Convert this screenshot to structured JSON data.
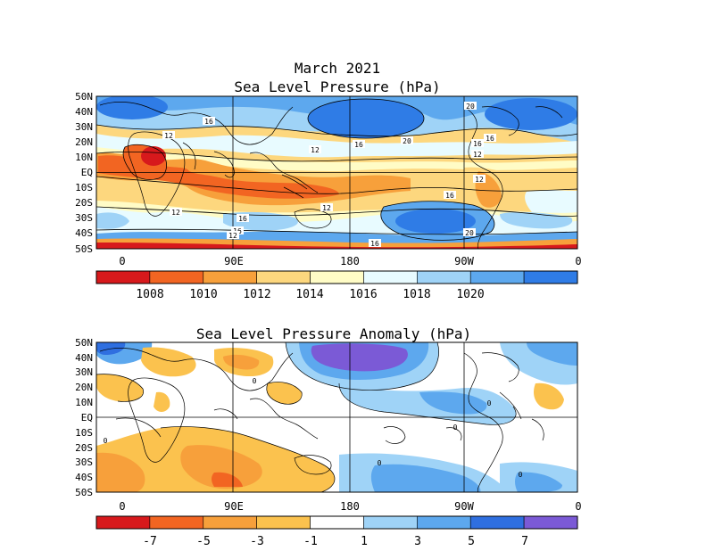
{
  "title_line1": "March 2021",
  "title_line2": "Sea Level Pressure (hPa)",
  "title_anomaly": "Sea Level Pressure Anomaly (hPa)",
  "lat_labels": [
    "50N",
    "40N",
    "30N",
    "20N",
    "10N",
    "EQ",
    "10S",
    "20S",
    "30S",
    "40S",
    "50S"
  ],
  "lon_labels": [
    "0",
    "90E",
    "180",
    "90W",
    "0"
  ],
  "contour_labels_top": [
    "16",
    "12",
    "16",
    "20",
    "12",
    "16",
    "20",
    "16",
    "12",
    "12",
    "16",
    "12",
    "12",
    "16",
    "16",
    "12",
    "20",
    "16"
  ],
  "contour_labels_bottom": [
    "0",
    "0",
    "0",
    "0",
    "0",
    "0"
  ],
  "colorbar_top": {
    "labels": [
      "1008",
      "1010",
      "1012",
      "1014",
      "1016",
      "1018",
      "1020"
    ],
    "colors": [
      "#d7191c",
      "#f26522",
      "#f7a03b",
      "#fdd77e",
      "#fffcc6",
      "#e8fbff",
      "#9fd3f7",
      "#5da8ee",
      "#2f7ce6"
    ]
  },
  "colorbar_bottom": {
    "labels": [
      "-7",
      "-5",
      "-3",
      "-1",
      "1",
      "3",
      "5",
      "7"
    ],
    "colors": [
      "#d7191c",
      "#f26522",
      "#f7a03b",
      "#fbc24e",
      "#ffffff",
      "#9fd3f7",
      "#5da8ee",
      "#2f6fe0",
      "#7b5ad6"
    ]
  }
}
